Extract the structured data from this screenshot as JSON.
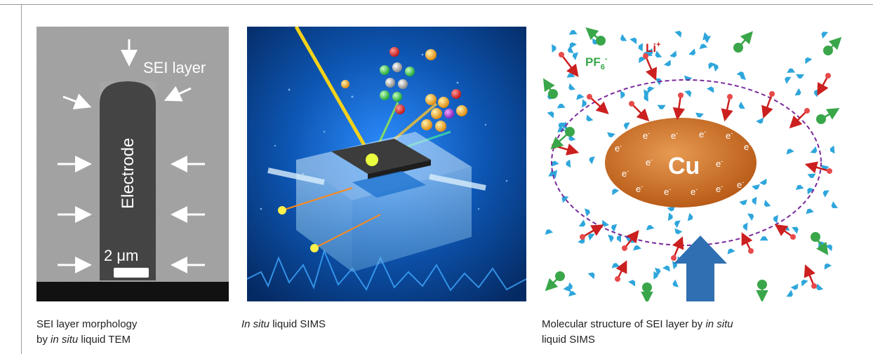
{
  "figure": {
    "panels": [
      {
        "id": "tem",
        "labels": {
          "sei": "SEI layer",
          "electrode": "Electrode",
          "scale": "2 μm"
        },
        "caption": {
          "line1": "SEI layer morphology",
          "prefix": "by ",
          "italic": "in situ",
          "suffix": " liquid TEM"
        },
        "colors": {
          "background": "#a9a9a9",
          "electrode": "#4a4a4a",
          "bar": "#111111"
        }
      },
      {
        "id": "sims",
        "caption": {
          "italic": "In situ",
          "suffix": " liquid SIMS"
        },
        "colors": {
          "background": "#0a3f86",
          "glow": "#2d8dff",
          "beam": "#f3d21a",
          "box": "#8fc6ee"
        }
      },
      {
        "id": "molecular",
        "labels": {
          "li": "Li",
          "li_sup": "+",
          "pf": "PF",
          "pf_sub": "6",
          "pf_sup": "-",
          "cu": "Cu",
          "electron": "e",
          "electron_sup": "-"
        },
        "caption": {
          "line1_prefix": "Molecular structure of SEI layer by ",
          "italic": "in situ",
          "line2": "liquid SIMS"
        },
        "colors": {
          "cu": "#c86a1f",
          "solvent": "#2ea6dc",
          "arrow": "#cc1f1f",
          "anion": "#3aa64a",
          "dashed": "#7a2a9a",
          "big_arrow": "#2f6fb2"
        }
      }
    ]
  }
}
